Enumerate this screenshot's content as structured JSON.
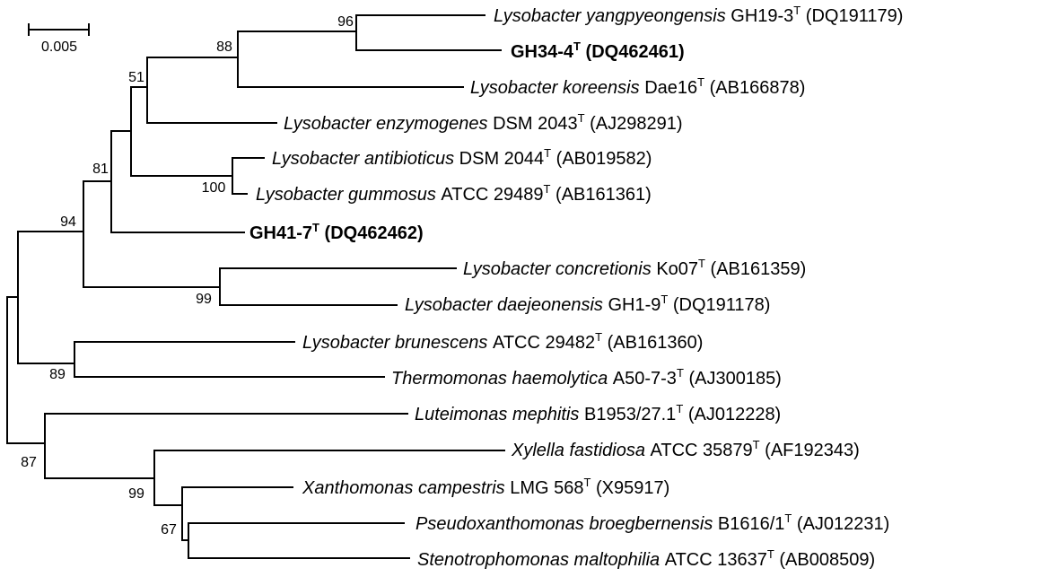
{
  "scale_bar": {
    "label": "0.005"
  },
  "taxa": [
    {
      "genus_species": "Lysobacter yangpyeongensis",
      "strain": "GH19-3",
      "type_mark": "T",
      "accession": "(DQ191179)",
      "bold": false
    },
    {
      "genus_species": "",
      "strain": "GH34-4",
      "type_mark": "T",
      "accession": "(DQ462461)",
      "bold": true
    },
    {
      "genus_species": "Lysobacter koreensis",
      "strain": "Dae16",
      "type_mark": "T",
      "accession": "(AB166878)",
      "bold": false
    },
    {
      "genus_species": "Lysobacter enzymogenes",
      "strain": "DSM 2043",
      "type_mark": "T",
      "accession": "(AJ298291)",
      "bold": false
    },
    {
      "genus_species": "Lysobacter antibioticus",
      "strain": "DSM 2044",
      "type_mark": "T",
      "accession": "(AB019582)",
      "bold": false
    },
    {
      "genus_species": "Lysobacter gummosus",
      "strain": "ATCC 29489",
      "type_mark": "T",
      "accession": "(AB161361)",
      "bold": false
    },
    {
      "genus_species": "",
      "strain": "GH41-7",
      "type_mark": "T",
      "accession": "(DQ462462)",
      "bold": true
    },
    {
      "genus_species": "Lysobacter concretionis",
      "strain": "Ko07",
      "type_mark": "T",
      "accession": "(AB161359)",
      "bold": false
    },
    {
      "genus_species": "Lysobacter daejeonensis",
      "strain": "GH1-9",
      "type_mark": "T",
      "accession": "(DQ191178)",
      "bold": false
    },
    {
      "genus_species": "Lysobacter brunescens",
      "strain": "ATCC 29482",
      "type_mark": "T",
      "accession": "(AB161360)",
      "bold": false
    },
    {
      "genus_species": "Thermomonas haemolytica",
      "strain": "A50-7-3",
      "type_mark": "T",
      "accession": "(AJ300185)",
      "bold": false
    },
    {
      "genus_species": "Luteimonas mephitis",
      "strain": "B1953/27.1",
      "type_mark": "T",
      "accession": "(AJ012228)",
      "bold": false
    },
    {
      "genus_species": "Xylella fastidiosa",
      "strain": "ATCC 35879",
      "type_mark": "T",
      "accession": "(AF192343)",
      "bold": false
    },
    {
      "genus_species": "Xanthomonas campestris",
      "strain": "LMG 568",
      "type_mark": "T",
      "accession": "(X95917)",
      "bold": false
    },
    {
      "genus_species": "Pseudoxanthomonas broegbernensis",
      "strain": "B1616/1",
      "type_mark": "T",
      "accession": "(AJ012231)",
      "bold": false
    },
    {
      "genus_species": "Stenotrophomonas maltophilia",
      "strain": "ATCC 13637",
      "type_mark": "T",
      "accession": "(AB008509)",
      "bold": false
    }
  ],
  "bootstrap": {
    "n96": "96",
    "n88": "88",
    "n51": "51",
    "n100": "100",
    "n81": "81",
    "n94": "94",
    "n99a": "99",
    "n89": "89",
    "n87": "87",
    "n99b": "99",
    "n67": "67"
  }
}
